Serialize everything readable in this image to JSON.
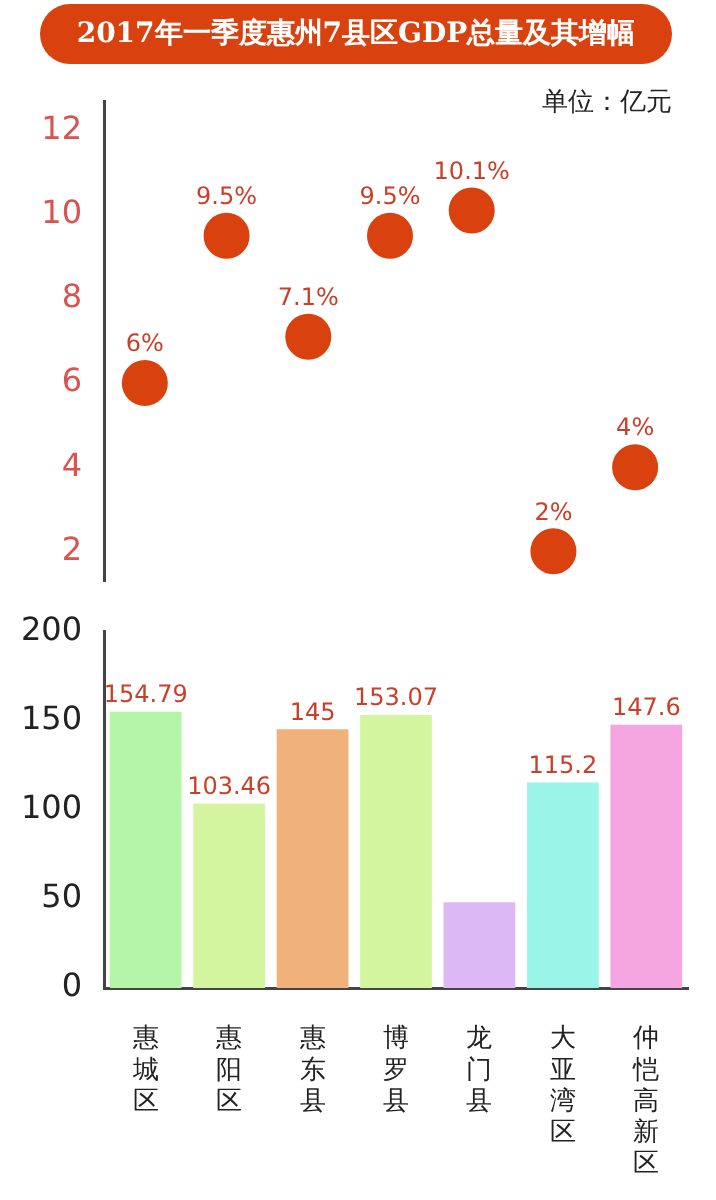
{
  "chart_data": [
    {
      "type": "scatter",
      "title": "2017年一季度惠州7县区GDP总量及其增幅",
      "annotations": [
        "单位：亿元"
      ],
      "categories": [
        "惠城区",
        "惠阳区",
        "惠东县",
        "博罗县",
        "龙门县",
        "大亚湾区",
        "仲恺高新区"
      ],
      "series": [
        {
          "color": "#d9420f",
          "values": [
            6,
            9.5,
            7.1,
            9.5,
            10.1,
            2,
            4
          ]
        }
      ],
      "value_labels": [
        "6%",
        "9.5%",
        "7.1%",
        "9.5%",
        "10.1%",
        "2%",
        "4%"
      ],
      "ylim": [
        1.3,
        12.7
      ],
      "yticks": [
        2,
        4,
        6,
        8,
        10,
        12
      ],
      "tick_labels": "y",
      "grid": false,
      "legend": false,
      "marker": "circle"
    },
    {
      "type": "bar",
      "categories": [
        "惠城区",
        "惠阳区",
        "惠东县",
        "博罗县",
        "龙门县",
        "大亚湾区",
        "仲恺高新区"
      ],
      "values": [
        154.79,
        103.46,
        145,
        153.07,
        48,
        115.2,
        147.6
      ],
      "colors": [
        "#b5f5a8",
        "#d4f5a0",
        "#f0b27a",
        "#d4f5a0",
        "#dcb8f5",
        "#9af5e8",
        "#f5a5e0"
      ],
      "value_labels": [
        "154.79",
        "103.46",
        "145",
        "153.07",
        null,
        "115.2",
        "147.6"
      ],
      "ylim": [
        0,
        200
      ],
      "yticks": [
        0,
        50,
        100,
        150,
        200
      ],
      "grid": false,
      "legend": false
    }
  ]
}
